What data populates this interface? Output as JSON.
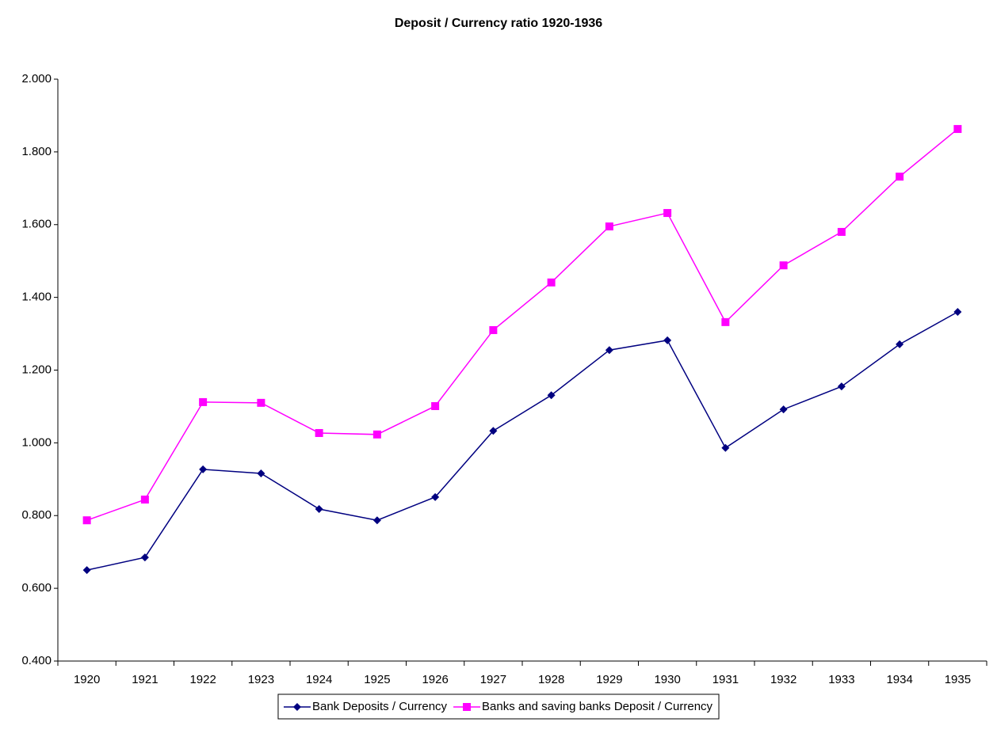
{
  "chart_data": {
    "type": "line",
    "title": "Deposit / Currency ratio 1920-1936",
    "categories": [
      "1920",
      "1921",
      "1922",
      "1923",
      "1924",
      "1925",
      "1926",
      "1927",
      "1928",
      "1929",
      "1930",
      "1931",
      "1932",
      "1933",
      "1934",
      "1935"
    ],
    "series": [
      {
        "name": "Bank Deposits / Currency",
        "color": "#000080",
        "marker": "diamond",
        "values": [
          0.65,
          0.685,
          0.927,
          0.916,
          0.818,
          0.787,
          0.851,
          1.033,
          1.131,
          1.255,
          1.282,
          0.986,
          1.092,
          1.155,
          1.271,
          1.36
        ]
      },
      {
        "name": "Banks and saving banks Deposit / Currency",
        "color": "#ff00ff",
        "marker": "square",
        "values": [
          0.787,
          0.844,
          1.112,
          1.11,
          1.027,
          1.023,
          1.101,
          1.31,
          1.441,
          1.595,
          1.632,
          1.332,
          1.488,
          1.58,
          1.732,
          1.863
        ]
      }
    ],
    "ylim": [
      0.4,
      2.0
    ],
    "yticks": [
      {
        "value": 0.4,
        "label": "0.400"
      },
      {
        "value": 0.6,
        "label": "0.600"
      },
      {
        "value": 0.8,
        "label": "0.800"
      },
      {
        "value": 1.0,
        "label": "1.000"
      },
      {
        "value": 1.2,
        "label": "1.200"
      },
      {
        "value": 1.4,
        "label": "1.400"
      },
      {
        "value": 1.6,
        "label": "1.600"
      },
      {
        "value": 1.8,
        "label": "1.800"
      },
      {
        "value": 2.0,
        "label": "2.000"
      }
    ],
    "legend": "bottom"
  }
}
